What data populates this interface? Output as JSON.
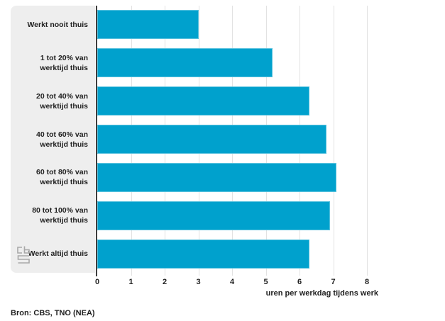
{
  "chart_data": {
    "type": "bar",
    "orientation": "horizontal",
    "categories": [
      "Werkt nooit thuis",
      "1 tot 20% van\nwerktijd thuis",
      "20 tot 40% van\nwerktijd thuis",
      "40 tot 60% van\nwerktijd thuis",
      "60 tot 80% van\nwerktijd thuis",
      "80 tot 100% van\nwerktijd thuis",
      "Werkt altijd thuis"
    ],
    "values": [
      3.0,
      5.2,
      6.3,
      6.8,
      7.1,
      6.9,
      6.3
    ],
    "title": "",
    "xlabel": "uren per werkdag tijdens werk",
    "ylabel": "",
    "xlim": [
      0,
      8
    ],
    "xticks": [
      0,
      1,
      2,
      3,
      4,
      5,
      6,
      7,
      8
    ],
    "grid": "vertical gridlines at each unit",
    "legend": "none"
  },
  "source_label": "Bron: CBS, TNO (NEA)",
  "icons": {
    "logo": "cbs-logo"
  },
  "colors": {
    "bar": "#00a1cd",
    "panel": "#eeeeee",
    "gridline": "#e2e2e2",
    "axis": "#3d3d3d",
    "text": "#1f1f1f",
    "logo": "#a8a8a8"
  }
}
